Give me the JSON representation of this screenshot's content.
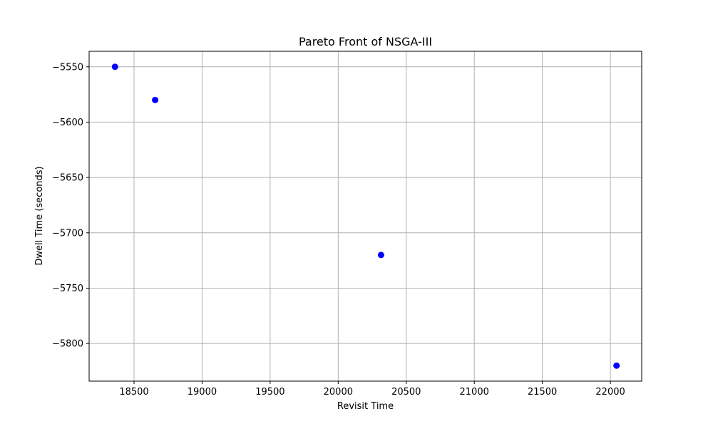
{
  "chart_data": {
    "type": "scatter",
    "title": "Pareto Front of NSGA-III",
    "xlabel": "Revisit Time",
    "ylabel": "Dwell Time (seconds)",
    "xlim": [
      18170,
      22230
    ],
    "ylim": [
      -5834,
      -5536
    ],
    "xticks": [
      18500,
      19000,
      19500,
      20000,
      20500,
      21000,
      21500,
      22000
    ],
    "yticks": [
      -5550,
      -5600,
      -5650,
      -5700,
      -5750,
      -5800
    ],
    "xtick_labels": [
      "18500",
      "19000",
      "19500",
      "20000",
      "20500",
      "21000",
      "21500",
      "22000"
    ],
    "ytick_labels": [
      "−5550",
      "−5600",
      "−5650",
      "−5700",
      "−5750",
      "−5800"
    ],
    "grid": true,
    "marker_color": "#0000ff",
    "points": [
      {
        "x": 18360,
        "y": -5550
      },
      {
        "x": 18655,
        "y": -5580
      },
      {
        "x": 20315,
        "y": -5720
      },
      {
        "x": 22045,
        "y": -5820
      }
    ]
  }
}
